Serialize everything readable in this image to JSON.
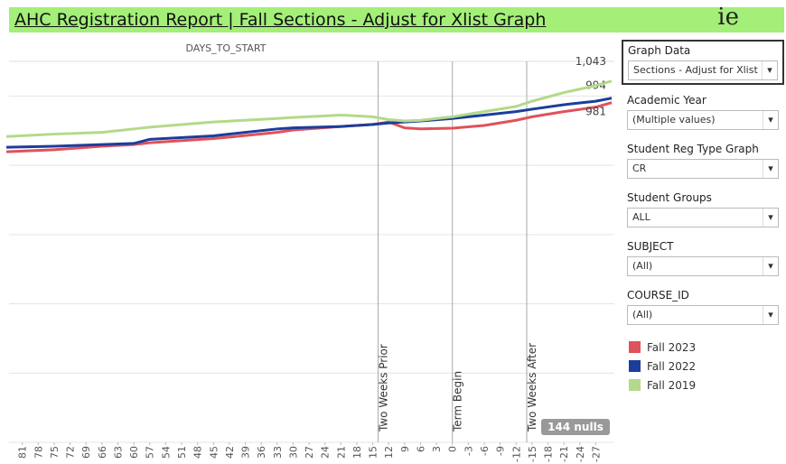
{
  "header": {
    "title": "AHC Registration Report | Fall Sections - Adjust for Xlist Graph",
    "logo": "ie"
  },
  "filters": [
    {
      "label": "Graph Data",
      "value": "Sections - Adjust for Xlist"
    },
    {
      "label": "Academic Year",
      "value": "(Multiple values)"
    },
    {
      "label": "Student Reg Type Graph",
      "value": "CR"
    },
    {
      "label": "Student Groups",
      "value": "ALL"
    },
    {
      "label": "SUBJECT",
      "value": "(All)"
    },
    {
      "label": "COURSE_ID",
      "value": "(All)"
    }
  ],
  "chart_data": {
    "type": "line",
    "title": "DAYS_TO_START",
    "x": [
      84,
      75,
      66,
      60,
      57,
      45,
      33,
      30,
      21,
      15,
      12,
      9,
      6,
      0,
      -6,
      -12,
      -15,
      -21,
      -27,
      -30
    ],
    "series": [
      {
        "name": "Fall 2023",
        "color": "#e0525a",
        "values": [
          839,
          845,
          855,
          860,
          865,
          877,
          895,
          902,
          912,
          918,
          925,
          908,
          905,
          907,
          915,
          930,
          940,
          955,
          968,
          981
        ],
        "value_labels": [
          null,
          null,
          null,
          null,
          null,
          null,
          null,
          null,
          null,
          null,
          null,
          null,
          null,
          null,
          null,
          null,
          null,
          null,
          null,
          "981"
        ]
      },
      {
        "name": "Fall 2022",
        "color": "#1c3d9c",
        "values": [
          852,
          855,
          860,
          863,
          875,
          885,
          905,
          908,
          912,
          918,
          922,
          925,
          928,
          935,
          945,
          955,
          962,
          975,
          985,
          994
        ],
        "value_labels": [
          null,
          null,
          null,
          null,
          null,
          null,
          null,
          null,
          null,
          null,
          null,
          null,
          null,
          null,
          null,
          null,
          null,
          null,
          null,
          "994"
        ]
      },
      {
        "name": "Fall 2019",
        "color": "#b4d98a",
        "values": [
          883,
          890,
          895,
          905,
          910,
          925,
          935,
          938,
          945,
          940,
          932,
          928,
          930,
          940,
          955,
          970,
          985,
          1010,
          1030,
          1043
        ],
        "value_labels": [
          null,
          null,
          null,
          null,
          null,
          null,
          null,
          null,
          null,
          null,
          null,
          null,
          null,
          null,
          null,
          null,
          null,
          null,
          null,
          "1,043"
        ]
      }
    ],
    "xlim": [
      83.5,
      -30.5
    ],
    "xticks": [
      81,
      78,
      75,
      72,
      69,
      66,
      63,
      60,
      57,
      54,
      51,
      48,
      45,
      42,
      39,
      36,
      33,
      30,
      27,
      24,
      21,
      18,
      15,
      12,
      9,
      6,
      3,
      0,
      -3,
      -6,
      -9,
      -12,
      -15,
      -18,
      -21,
      -24,
      -27
    ],
    "ylim": [
      0,
      1100
    ],
    "yticks": [
      0,
      200,
      400,
      600,
      800,
      1000
    ],
    "grid": true,
    "reference_lines": [
      {
        "value": 14,
        "label": "Two Weeks Prior"
      },
      {
        "value": 0,
        "label": "Term Begin"
      },
      {
        "value": -14,
        "label": "Two Weeks After"
      }
    ],
    "annotation": "144 nulls"
  }
}
